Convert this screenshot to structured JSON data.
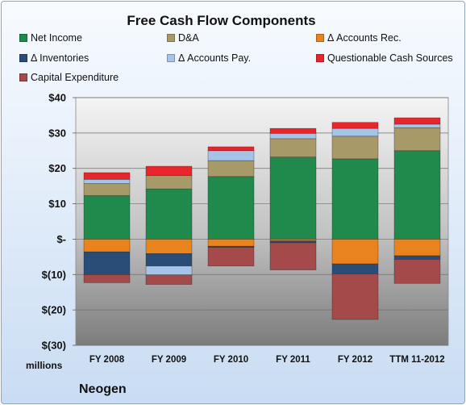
{
  "chart_data": {
    "type": "bar",
    "stacked": true,
    "title": "Free Cash Flow Components",
    "ylabel": "",
    "xlabel": "",
    "unit_label": "millions",
    "footer": "Neogen",
    "ylim": [
      -30,
      40
    ],
    "yticks": [
      40,
      30,
      20,
      10,
      0,
      -10,
      -20,
      -30
    ],
    "ytick_labels": [
      "$40",
      "$30",
      "$20",
      "$10",
      "$-",
      "$(10)",
      "$(20)",
      "$(30)"
    ],
    "grid": true,
    "legend_position": "top",
    "categories": [
      "FY 2008",
      "FY 2009",
      "FY 2010",
      "FY 2011",
      "FY 2012",
      "TTM 11-2012"
    ],
    "series": [
      {
        "name": "Net Income",
        "color": "#1f8a4c",
        "values": [
          12.3,
          14.2,
          17.7,
          23.2,
          22.7,
          25.0
        ]
      },
      {
        "name": "D&A",
        "color": "#a89a68",
        "values": [
          3.4,
          3.8,
          4.5,
          5.2,
          6.4,
          6.5
        ]
      },
      {
        "name": "Δ Accounts Rec.",
        "color": "#e8831e",
        "values": [
          -3.6,
          -4.1,
          -2.0,
          -0.5,
          -7.0,
          -4.7
        ]
      },
      {
        "name": "Δ Inventories",
        "color": "#2a4d78",
        "values": [
          -6.4,
          -3.5,
          -0.3,
          -0.5,
          -2.8,
          -1.0
        ]
      },
      {
        "name": "Δ Accounts Pay.",
        "color": "#a6c3e8",
        "values": [
          1.2,
          -2.5,
          2.8,
          1.5,
          2.2,
          1.0
        ]
      },
      {
        "name": "Questionable Cash Sources",
        "color": "#e8242c",
        "values": [
          1.9,
          2.6,
          1.1,
          1.4,
          1.7,
          1.8
        ]
      },
      {
        "name": "Capital Expenditure",
        "color": "#a44a4a",
        "values": [
          -2.3,
          -2.7,
          -5.3,
          -7.7,
          -12.9,
          -6.8
        ]
      }
    ]
  }
}
